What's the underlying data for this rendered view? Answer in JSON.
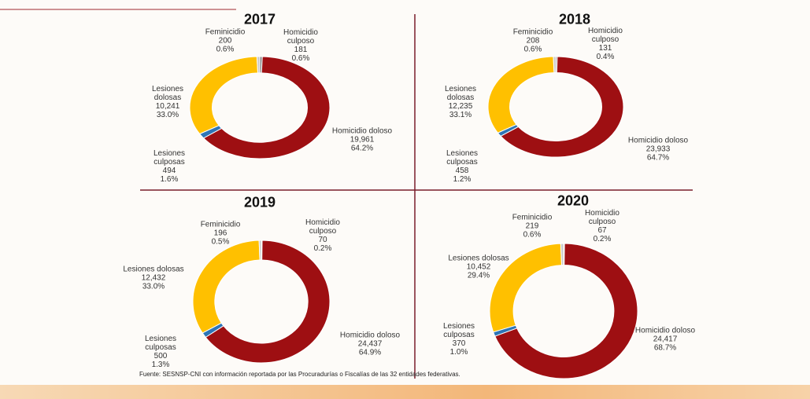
{
  "chart_data": [
    {
      "type": "pie",
      "title": "2017",
      "categories": [
        "Homicidio culposo",
        "Homicidio doloso",
        "Lesiones culposas",
        "Lesiones dolosas",
        "Feminicidio"
      ],
      "colors": [
        "#8c8c8c",
        "#9e0f12",
        "#2e75b6",
        "#ffc000",
        "#c9c9c9"
      ],
      "values": [
        181,
        19961,
        494,
        10241,
        200
      ],
      "value_labels": [
        "181",
        "19,961",
        "494",
        "10,241",
        "200"
      ],
      "percents": [
        0.6,
        64.2,
        1.6,
        33.0,
        0.6
      ],
      "percent_labels": [
        "0.6%",
        "64.2%",
        "1.6%",
        "33.0%",
        "0.6%"
      ]
    },
    {
      "type": "pie",
      "title": "2018",
      "categories": [
        "Homicidio culposo",
        "Homicidio doloso",
        "Lesiones culposas",
        "Lesiones dolosas",
        "Feminicidio"
      ],
      "colors": [
        "#8c8c8c",
        "#9e0f12",
        "#2e75b6",
        "#ffc000",
        "#c9c9c9"
      ],
      "values": [
        131,
        23933,
        458,
        12235,
        208
      ],
      "value_labels": [
        "131",
        "23,933",
        "458",
        "12,235",
        "208"
      ],
      "percents": [
        0.4,
        64.7,
        1.2,
        33.1,
        0.6
      ],
      "percent_labels": [
        "0.4%",
        "64.7%",
        "1.2%",
        "33.1%",
        "0.6%"
      ]
    },
    {
      "type": "pie",
      "title": "2019",
      "categories": [
        "Homicidio culposo",
        "Homicidio doloso",
        "Lesiones culposas",
        "Lesiones dolosas",
        "Feminicidio"
      ],
      "colors": [
        "#8c8c8c",
        "#9e0f12",
        "#2e75b6",
        "#ffc000",
        "#c9c9c9"
      ],
      "values": [
        70,
        24437,
        500,
        12432,
        196
      ],
      "value_labels": [
        "70",
        "24,437",
        "500",
        "12,432",
        "196"
      ],
      "percents": [
        0.2,
        64.9,
        1.3,
        33.0,
        0.5
      ],
      "percent_labels": [
        "0.2%",
        "64.9%",
        "1.3%",
        "33.0%",
        "0.5%"
      ]
    },
    {
      "type": "pie",
      "title": "2020",
      "categories": [
        "Homicidio culposo",
        "Homicidio doloso",
        "Lesiones culposas",
        "Lesiones dolosas",
        "Feminicidio"
      ],
      "colors": [
        "#8c8c8c",
        "#9e0f12",
        "#2e75b6",
        "#ffc000",
        "#c9c9c9"
      ],
      "values": [
        67,
        24417,
        370,
        10452,
        219
      ],
      "value_labels": [
        "67",
        "24,417",
        "370",
        "10,452",
        "219"
      ],
      "percents": [
        0.2,
        68.7,
        1.0,
        29.4,
        0.6
      ],
      "percent_labels": [
        "0.2%",
        "68.7%",
        "1.0%",
        "29.4%",
        "0.6%"
      ]
    }
  ],
  "footer": "Fuente: SESNSP-CNI con información reportada por las Procuradurías o Fiscalías de las 32 entidades federativas."
}
